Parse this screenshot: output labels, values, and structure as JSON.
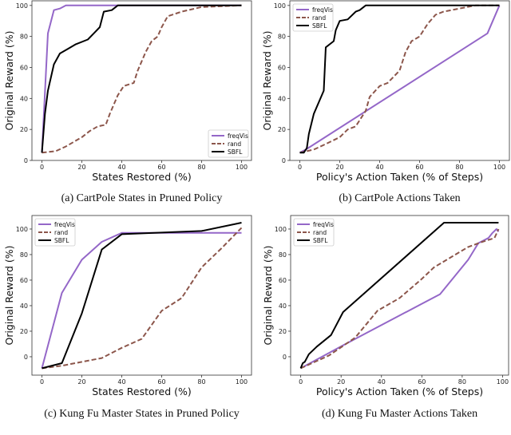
{
  "colors": {
    "freqVis": "#9467c8",
    "rand": "#8c564b",
    "SBFL": "#000000"
  },
  "chart_data": [
    {
      "type": "line",
      "caption": "(a) CartPole States in Pruned Policy",
      "xlabel": "States Restored (%)",
      "ylabel": "Original Reward (%)",
      "xlim": [
        -5,
        105
      ],
      "ylim": [
        0,
        103
      ],
      "xticks": [
        0,
        20,
        40,
        60,
        80,
        100
      ],
      "yticks": [
        0,
        20,
        40,
        60,
        80,
        100
      ],
      "grid": false,
      "legend_placement": "lower-right",
      "series": [
        {
          "name": "freqVis",
          "style": "solid",
          "x": [
            0,
            3,
            6,
            9,
            12,
            100
          ],
          "y": [
            5,
            82,
            97,
            98,
            100,
            100
          ]
        },
        {
          "name": "rand",
          "style": "dashed",
          "x": [
            0,
            7,
            12,
            16,
            20,
            24,
            28,
            32,
            34,
            38,
            41,
            46,
            48,
            52,
            55,
            58,
            60,
            63,
            70,
            80,
            100
          ],
          "y": [
            5,
            6,
            9,
            12,
            15,
            19,
            22,
            23,
            30,
            42,
            48,
            50,
            58,
            70,
            77,
            80,
            86,
            93,
            96,
            99,
            100
          ]
        },
        {
          "name": "SBFL",
          "style": "solid",
          "x": [
            0,
            1.5,
            3,
            6,
            9,
            13,
            17,
            23,
            26,
            29,
            31,
            35,
            38,
            100
          ],
          "y": [
            5,
            30,
            45,
            62,
            69,
            72,
            75,
            78,
            82,
            86,
            96,
            97,
            100,
            100
          ]
        }
      ]
    },
    {
      "type": "line",
      "caption": "(b) CartPole Actions Taken",
      "xlabel": "Policy's Action Taken (% of Steps)",
      "ylabel": "Original Reward (%)",
      "xlim": [
        -5,
        105
      ],
      "ylim": [
        0,
        103
      ],
      "xticks": [
        0,
        20,
        40,
        60,
        80,
        100
      ],
      "yticks": [
        0,
        20,
        40,
        60,
        80,
        100
      ],
      "grid": false,
      "legend_placement": "upper-left",
      "series": [
        {
          "name": "freqVis",
          "style": "solid",
          "x": [
            0,
            3,
            94,
            100
          ],
          "y": [
            5,
            7,
            82,
            100
          ]
        },
        {
          "name": "rand",
          "style": "dashed",
          "x": [
            0,
            7,
            12,
            20,
            24,
            28,
            33,
            35,
            40,
            44,
            50,
            53,
            56,
            60,
            64,
            68,
            72,
            80,
            88,
            100
          ],
          "y": [
            5,
            7,
            10,
            15,
            20,
            22,
            32,
            41,
            48,
            50,
            58,
            70,
            77,
            80,
            88,
            94,
            96,
            98,
            100,
            100
          ]
        },
        {
          "name": "SBFL",
          "style": "solid",
          "x": [
            0,
            2,
            3.5,
            4.5,
            7,
            12,
            13,
            17,
            18,
            20,
            24,
            28,
            30,
            33,
            100
          ],
          "y": [
            5,
            5,
            8,
            17,
            30,
            45,
            73,
            77,
            84,
            90,
            91,
            96,
            97,
            100,
            100
          ]
        }
      ]
    },
    {
      "type": "line",
      "caption": "(c) Kung Fu Master States in Pruned Policy",
      "xlabel": "States Restored (%)",
      "ylabel": "Original Reward (%)",
      "xlim": [
        -5,
        105
      ],
      "ylim": [
        -14.4,
        110.6
      ],
      "xticks": [
        0,
        20,
        40,
        60,
        80,
        100
      ],
      "yticks": [
        0,
        20,
        40,
        60,
        80,
        100
      ],
      "grid": false,
      "legend_placement": "upper-left",
      "series": [
        {
          "name": "freqVis",
          "style": "solid",
          "x": [
            0,
            10,
            20,
            30,
            40,
            100
          ],
          "y": [
            -9,
            50,
            76,
            90,
            97,
            97
          ]
        },
        {
          "name": "rand",
          "style": "dashed",
          "x": [
            0,
            10,
            20,
            30,
            40,
            50,
            60,
            70,
            80,
            90,
            100
          ],
          "y": [
            -9,
            -7,
            -4,
            -1,
            7,
            14,
            36,
            46,
            70,
            85,
            101
          ]
        },
        {
          "name": "SBFL",
          "style": "solid",
          "x": [
            0,
            10,
            20,
            30,
            40,
            80,
            100
          ],
          "y": [
            -9,
            -5,
            34,
            84,
            96,
            98.5,
            105
          ]
        }
      ]
    },
    {
      "type": "line",
      "caption": "(d) Kung Fu Master Actions Taken",
      "xlabel": "Policy's Action Taken (% of Steps)",
      "ylabel": "Original Reward (%)",
      "xlim": [
        -5,
        103
      ],
      "ylim": [
        -14.4,
        110.6
      ],
      "xticks": [
        0,
        20,
        40,
        60,
        80,
        100
      ],
      "yticks": [
        0,
        20,
        40,
        60,
        80,
        100
      ],
      "grid": false,
      "legend_placement": "upper-left",
      "series": [
        {
          "name": "freqVis",
          "style": "solid",
          "x": [
            0,
            21,
            69,
            83,
            88,
            93,
            95,
            97,
            98
          ],
          "y": [
            -9,
            9,
            49,
            76,
            89,
            93,
            97,
            100,
            98
          ]
        },
        {
          "name": "rand",
          "style": "dashed",
          "x": [
            0,
            14,
            27,
            38,
            49,
            60,
            66,
            83,
            90,
            96,
            98
          ],
          "y": [
            -9,
            1,
            15,
            36,
            46,
            61,
            70,
            86,
            90,
            93,
            100
          ]
        },
        {
          "name": "SBFL",
          "style": "solid",
          "x": [
            0,
            1,
            2,
            4,
            8,
            15,
            21,
            71,
            98
          ],
          "y": [
            -9,
            -5,
            -4,
            2,
            8,
            17,
            35,
            105,
            105
          ]
        }
      ]
    }
  ]
}
